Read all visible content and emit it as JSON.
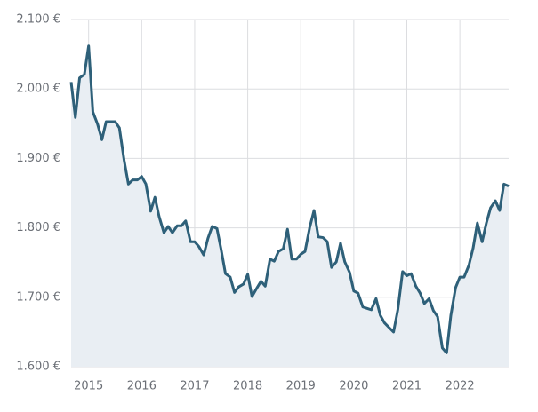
{
  "chart_data": {
    "type": "area",
    "x": [
      2014.67,
      2014.75,
      2014.83,
      2014.92,
      2015,
      2015.08,
      2015.17,
      2015.25,
      2015.33,
      2015.42,
      2015.5,
      2015.58,
      2015.67,
      2015.75,
      2015.83,
      2015.92,
      2016,
      2016.08,
      2016.17,
      2016.25,
      2016.33,
      2016.42,
      2016.5,
      2016.58,
      2016.67,
      2016.75,
      2016.83,
      2016.92,
      2017,
      2017.08,
      2017.17,
      2017.25,
      2017.33,
      2017.42,
      2017.5,
      2017.58,
      2017.67,
      2017.75,
      2017.83,
      2017.92,
      2018,
      2018.08,
      2018.17,
      2018.25,
      2018.33,
      2018.42,
      2018.5,
      2018.58,
      2018.67,
      2018.75,
      2018.83,
      2018.92,
      2019,
      2019.08,
      2019.17,
      2019.25,
      2019.33,
      2019.42,
      2019.5,
      2019.58,
      2019.67,
      2019.75,
      2019.83,
      2019.92,
      2020,
      2020.08,
      2020.17,
      2020.25,
      2020.33,
      2020.42,
      2020.5,
      2020.58,
      2020.67,
      2020.75,
      2020.83,
      2020.92,
      2021,
      2021.08,
      2021.17,
      2021.25,
      2021.33,
      2021.42,
      2021.5,
      2021.58,
      2021.67,
      2021.75,
      2021.83,
      2021.92,
      2022,
      2022.08,
      2022.17,
      2022.25,
      2022.33,
      2022.42,
      2022.5,
      2022.58,
      2022.67,
      2022.75,
      2022.83,
      2022.92
    ],
    "values": [
      2010,
      1959,
      2016,
      2021,
      2062,
      1967,
      1949,
      1927,
      1953,
      1953,
      1953,
      1944,
      1897,
      1863,
      1869,
      1869,
      1874,
      1863,
      1824,
      1844,
      1816,
      1793,
      1802,
      1793,
      1803,
      1803,
      1810,
      1780,
      1780,
      1773,
      1761,
      1785,
      1802,
      1799,
      1768,
      1734,
      1729,
      1707,
      1715,
      1719,
      1733,
      1701,
      1713,
      1723,
      1716,
      1755,
      1752,
      1766,
      1770,
      1798,
      1755,
      1755,
      1762,
      1766,
      1801,
      1825,
      1787,
      1786,
      1780,
      1743,
      1751,
      1778,
      1751,
      1736,
      1709,
      1706,
      1686,
      1684,
      1682,
      1698,
      1674,
      1663,
      1656,
      1650,
      1682,
      1737,
      1731,
      1734,
      1716,
      1706,
      1691,
      1698,
      1681,
      1672,
      1627,
      1620,
      1674,
      1714,
      1729,
      1729,
      1746,
      1771,
      1807,
      1780,
      1807,
      1829,
      1839,
      1825,
      1863,
      1860
    ],
    "color": "#2e6079",
    "fill_color": "#e9eef3",
    "xlim": [
      2014.67,
      2022.92
    ],
    "xticks": [
      2015,
      2016,
      2017,
      2018,
      2019,
      2020,
      2021,
      2022
    ],
    "ylim": [
      1600,
      2100
    ],
    "yticks": [
      {
        "value": 1600,
        "label": "1.600 €"
      },
      {
        "value": 1700,
        "label": "1.700 €"
      },
      {
        "value": 1800,
        "label": "1.800 €"
      },
      {
        "value": 1900,
        "label": "1.900 €"
      },
      {
        "value": 2000,
        "label": "2.000 €"
      },
      {
        "value": 2100,
        "label": "2.100 €"
      }
    ],
    "grid": true
  }
}
